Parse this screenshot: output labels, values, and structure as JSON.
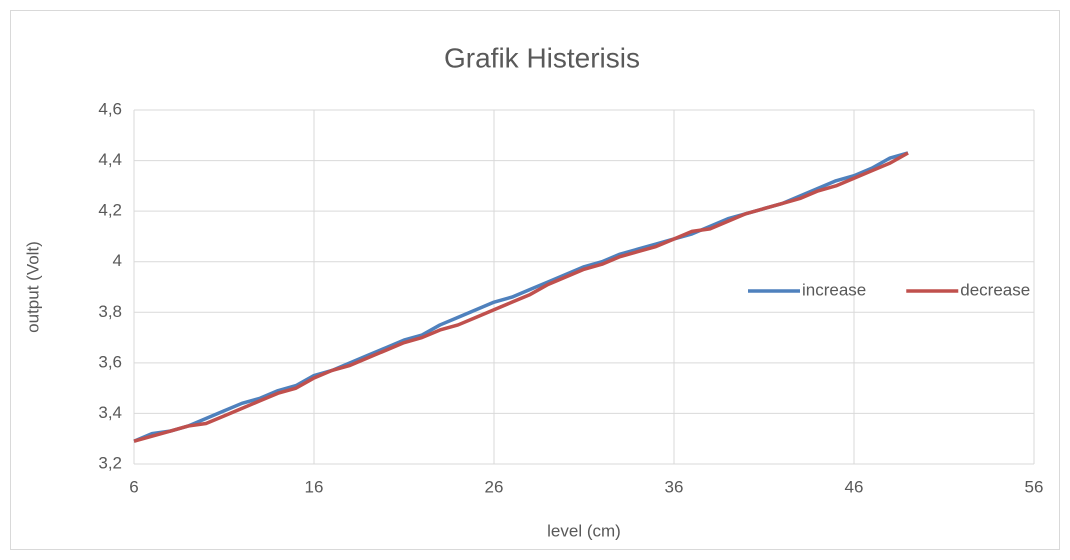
{
  "chart_data": {
    "type": "line",
    "title": "Grafik Histerisis",
    "x_label": "level (cm)",
    "y_label": "output (Volt)",
    "x": [
      6,
      7,
      8,
      9,
      10,
      11,
      12,
      13,
      14,
      15,
      16,
      17,
      18,
      19,
      20,
      21,
      22,
      23,
      24,
      25,
      26,
      27,
      28,
      29,
      30,
      31,
      32,
      33,
      34,
      35,
      36,
      37,
      38,
      39,
      40,
      41,
      42,
      43,
      44,
      45,
      46,
      47,
      48,
      49
    ],
    "series": [
      {
        "name": "increase",
        "color": "#4f81bd",
        "values": [
          3.29,
          3.32,
          3.33,
          3.35,
          3.38,
          3.41,
          3.44,
          3.46,
          3.49,
          3.51,
          3.55,
          3.57,
          3.6,
          3.63,
          3.66,
          3.69,
          3.71,
          3.75,
          3.78,
          3.81,
          3.84,
          3.86,
          3.89,
          3.92,
          3.95,
          3.98,
          4.0,
          4.03,
          4.05,
          4.07,
          4.09,
          4.11,
          4.14,
          4.17,
          4.19,
          4.21,
          4.23,
          4.26,
          4.29,
          4.32,
          4.34,
          4.37,
          4.41,
          4.43
        ]
      },
      {
        "name": "decrease",
        "color": "#c0504d",
        "values": [
          3.29,
          3.31,
          3.33,
          3.35,
          3.36,
          3.39,
          3.42,
          3.45,
          3.48,
          3.5,
          3.54,
          3.57,
          3.59,
          3.62,
          3.65,
          3.68,
          3.7,
          3.73,
          3.75,
          3.78,
          3.81,
          3.84,
          3.87,
          3.91,
          3.94,
          3.97,
          3.99,
          4.02,
          4.04,
          4.06,
          4.09,
          4.12,
          4.13,
          4.16,
          4.19,
          4.21,
          4.23,
          4.25,
          4.28,
          4.3,
          4.33,
          4.36,
          4.39,
          4.43
        ]
      }
    ],
    "xlim": [
      6,
      56
    ],
    "xticks": [
      6,
      16,
      26,
      36,
      46,
      56
    ],
    "ylim": [
      3.2,
      4.6
    ],
    "yticks": [
      {
        "value": 3.2,
        "label": "3,2"
      },
      {
        "value": 3.4,
        "label": "3,4"
      },
      {
        "value": 3.6,
        "label": "3,6"
      },
      {
        "value": 3.8,
        "label": "3,8"
      },
      4,
      {
        "value": 4.2,
        "label": "4,2"
      },
      {
        "value": 4.4,
        "label": "4,4"
      },
      {
        "value": 4.6,
        "label": "4,6"
      }
    ],
    "grid": true,
    "legend": "right"
  }
}
